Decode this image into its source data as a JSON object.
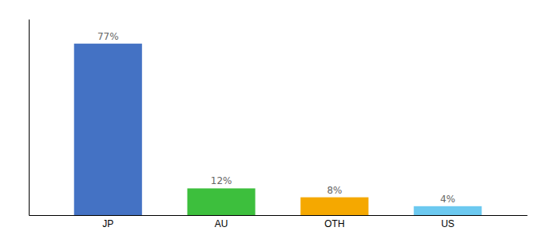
{
  "chart_data": {
    "type": "bar",
    "categories": [
      "JP",
      "AU",
      "OTH",
      "US"
    ],
    "values": [
      77,
      12,
      8,
      4
    ],
    "value_labels": [
      "77%",
      "12%",
      "8%",
      "4%"
    ],
    "colors": [
      "#4472c4",
      "#3dbf3d",
      "#f5a800",
      "#6cc9f0"
    ],
    "ylim": [
      0,
      88
    ],
    "grid": false,
    "data_labels": true,
    "tick_labels": "x"
  }
}
